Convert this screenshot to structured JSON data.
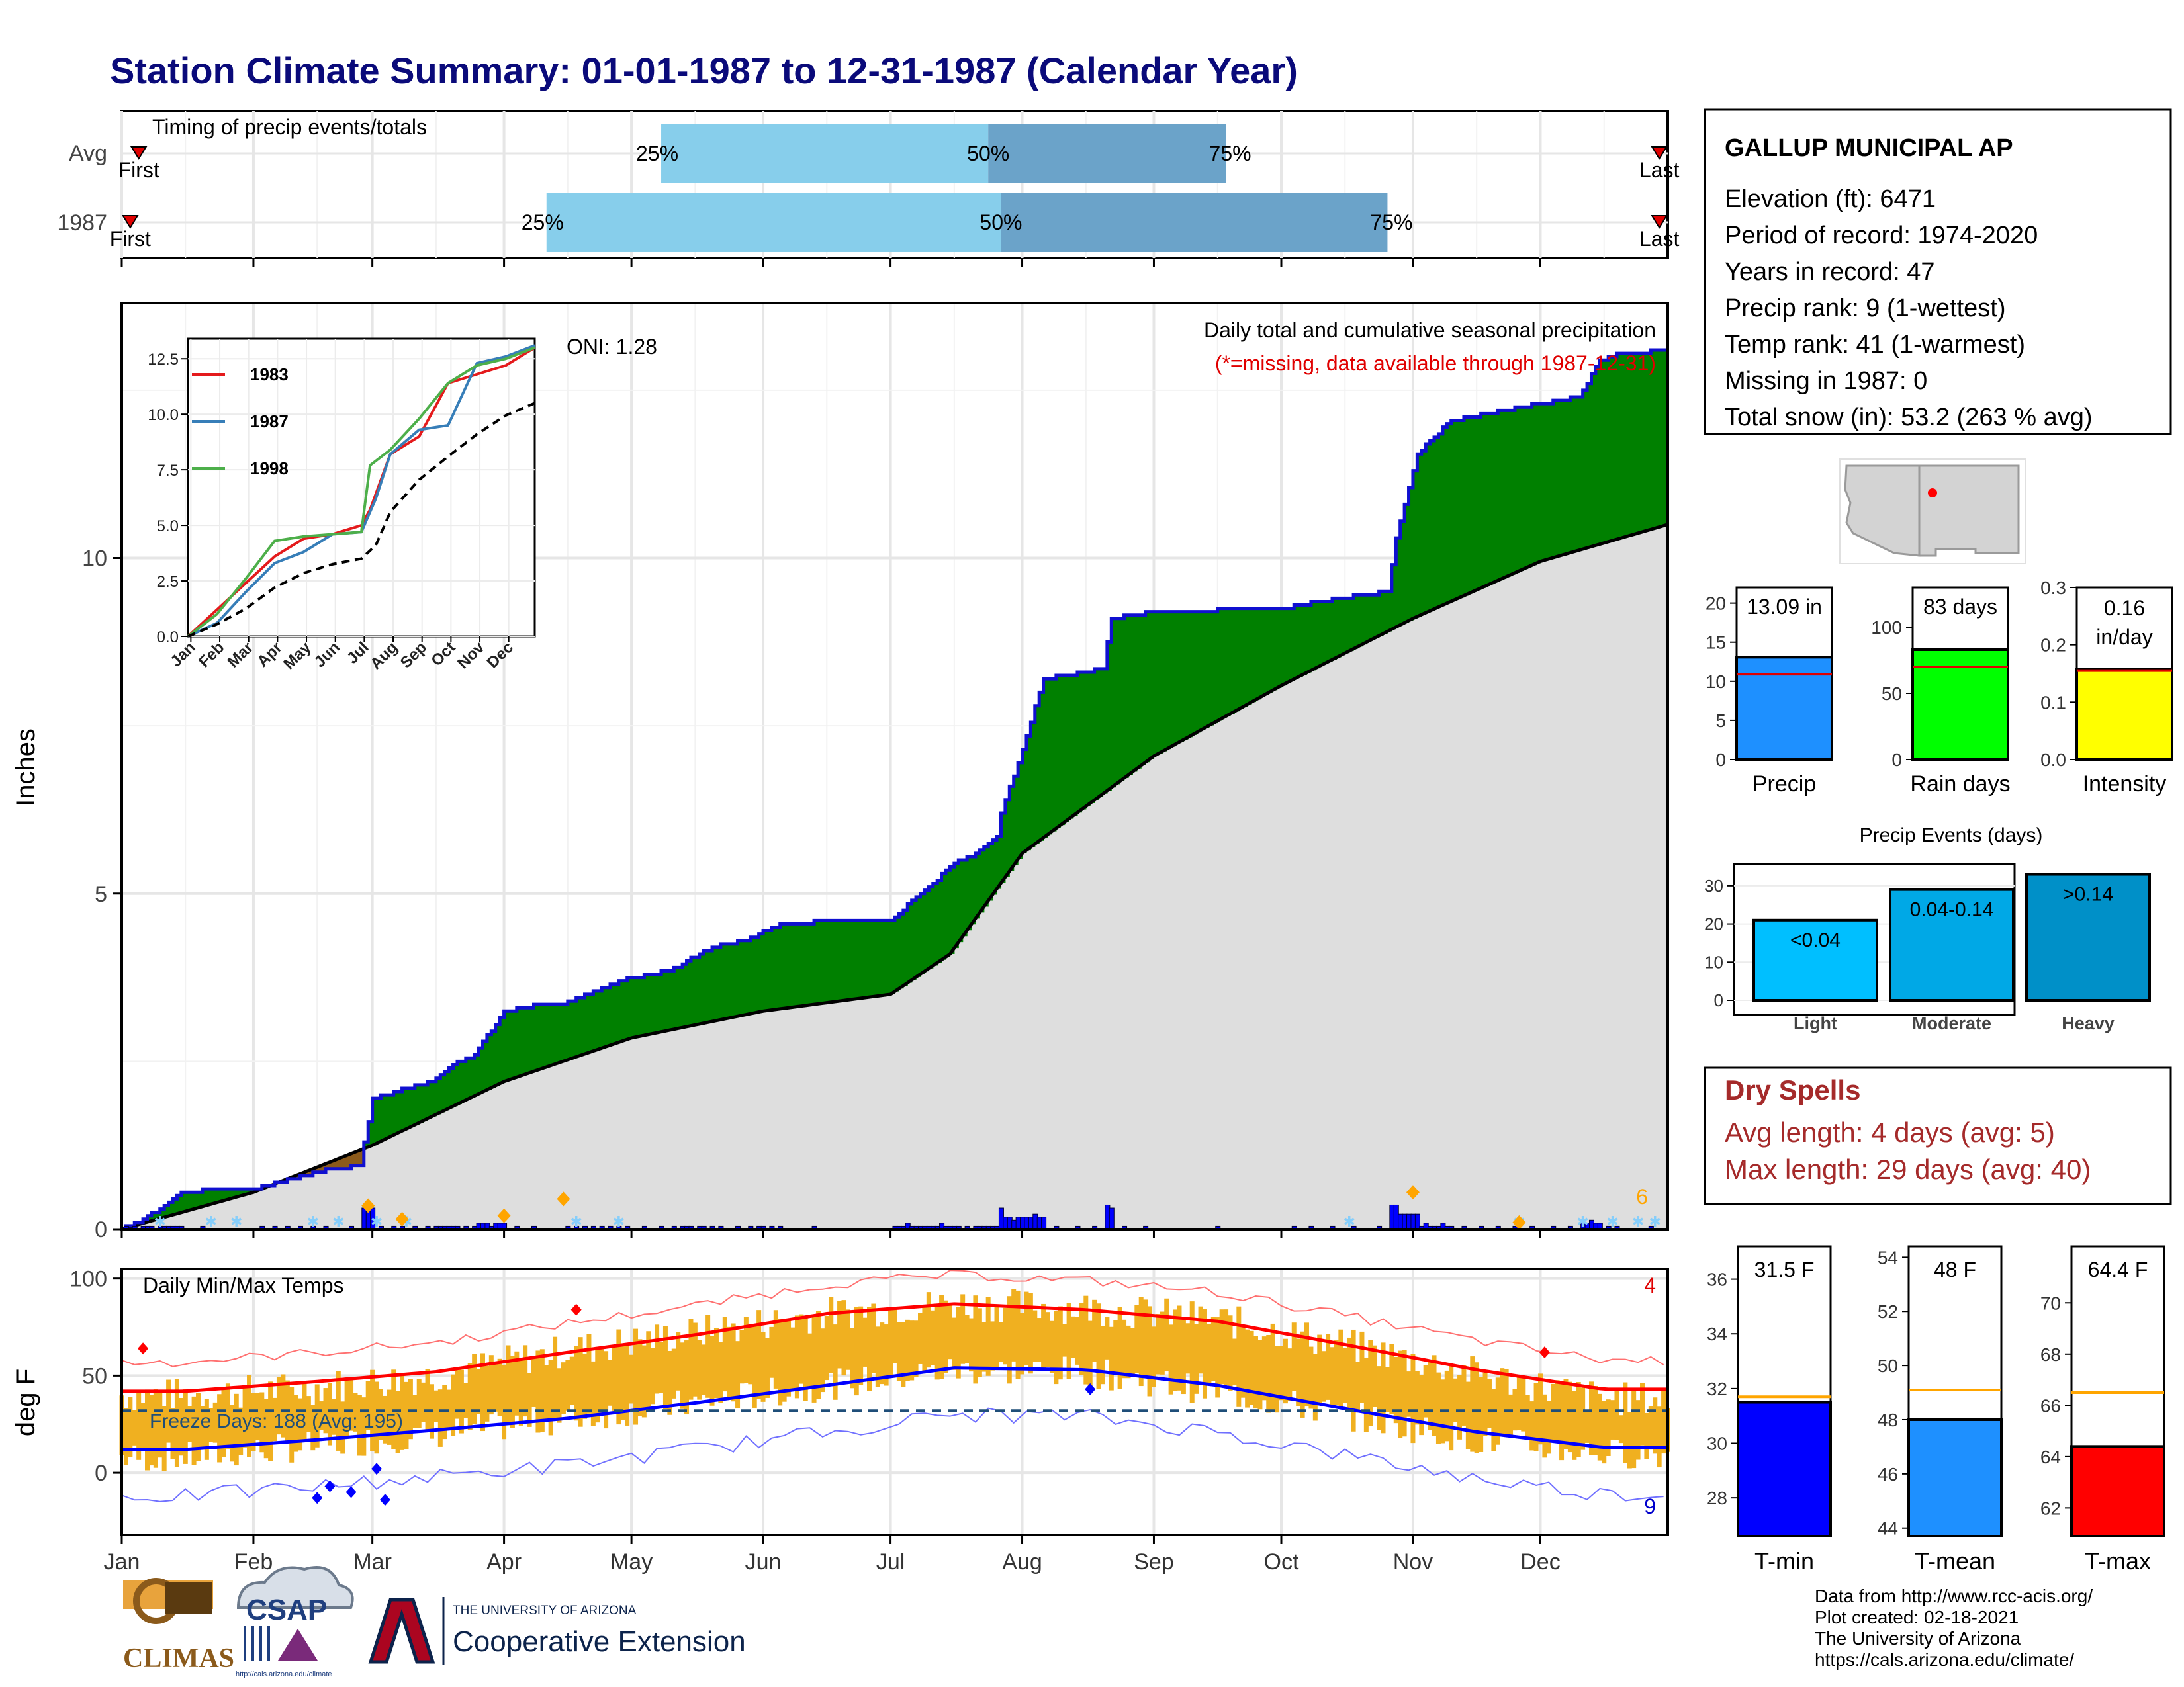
{
  "title": "Station Climate Summary: 01-01-1987 to 12-31-1987 (Calendar Year)",
  "colors": {
    "title": "#0a0a7a",
    "green": "#008000",
    "brown": "#8b5a1b",
    "cum_line": "#1010d0",
    "climo_fill": "#dedede",
    "bar_blue": "#0000ff",
    "q_light": "#87ceeb",
    "q_dark": "#6ba3c9",
    "red_text": "#e00000",
    "dry_title": "#a52a2a",
    "temp_orange": "#f0b020"
  },
  "timing": {
    "title": "Timing of precip events/totals",
    "rows": [
      {
        "label": "Avg",
        "first_label": "First",
        "last_label": "Last",
        "first_doy": 5,
        "last_doy": 363,
        "p25": 128,
        "p50": 205,
        "p75": 261,
        "p25_label": "25%",
        "p50_label": "50%",
        "p75_label": "75%"
      },
      {
        "label": "1987",
        "first_label": "First",
        "last_label": "Last",
        "first_doy": 3,
        "last_doy": 363,
        "p25": 101,
        "p50": 208,
        "p75": 299,
        "p25_label": "25%",
        "p50_label": "50%",
        "p75_label": "75%"
      }
    ]
  },
  "precip_panel": {
    "ylabel": "Inches",
    "header": "Daily total and cumulative seasonal precipitation",
    "missing_note": "(*=missing, data available through 1987-12-31)",
    "oni": "ONI: 1.28",
    "count_label": "6",
    "y_ticks": [
      "0",
      "5",
      "10"
    ]
  },
  "inset": {
    "y_ticks": [
      "0.0",
      "2.5",
      "5.0",
      "7.5",
      "10.0",
      "12.5"
    ],
    "x_ticks": [
      "Jan",
      "Feb",
      "Mar",
      "Apr",
      "May",
      "Jun",
      "Jul",
      "Aug",
      "Sep",
      "Oct",
      "Nov",
      "Dec"
    ],
    "legend": [
      {
        "name": "1983",
        "color": "#e41a1c"
      },
      {
        "name": "1987",
        "color": "#377eb8"
      },
      {
        "name": "1998",
        "color": "#4daf4a"
      }
    ]
  },
  "temp_panel": {
    "title": "Daily Min/Max Temps",
    "ylabel": "deg F",
    "freeze_label": "Freeze Days: 188 (Avg: 195)",
    "count_top": "4",
    "count_bottom": "9",
    "y_ticks": [
      "0",
      "50",
      "100"
    ],
    "months": [
      "Jan",
      "Feb",
      "Mar",
      "Apr",
      "May",
      "Jun",
      "Jul",
      "Aug",
      "Sep",
      "Oct",
      "Nov",
      "Dec"
    ]
  },
  "station": {
    "name": "GALLUP MUNICIPAL AP",
    "lines": [
      "Elevation (ft): 6471",
      "Period of record: 1974-2020",
      "Years in record: 47",
      "Precip rank: 9 (1-wettest)",
      "Temp rank: 41 (1-warmest)",
      "Missing in 1987: 0",
      "Total snow (in): 53.2 (263 % avg)"
    ]
  },
  "mini_bars": [
    {
      "label": "Precip",
      "value_label": "13.09 in",
      "value": 13.09,
      "avg": 10.9,
      "ymax": 22,
      "ticks": [
        "0",
        "5",
        "10",
        "15",
        "20"
      ],
      "tick_vals": [
        0,
        5,
        10,
        15,
        20
      ],
      "color": "#1e90ff"
    },
    {
      "label": "Rain days",
      "value_label": "83 days",
      "value": 83,
      "avg": 70,
      "ymax": 130,
      "ticks": [
        "0",
        "50",
        "100"
      ],
      "tick_vals": [
        0,
        50,
        100
      ],
      "color": "#00ff00"
    },
    {
      "label": "Intensity",
      "value_label": "0.16 in/day",
      "value": 0.158,
      "avg": 0.155,
      "ymax": 0.3,
      "ticks": [
        "0.0",
        "0.1",
        "0.2",
        "0.3"
      ],
      "tick_vals": [
        0,
        0.1,
        0.2,
        0.3
      ],
      "color": "#ffff00"
    }
  ],
  "events": {
    "title": "Precip Events (days)",
    "ticks": [
      "0",
      "10",
      "20",
      "30"
    ],
    "tick_vals": [
      0,
      10,
      20,
      30
    ],
    "bars": [
      {
        "category": "Light",
        "label": "<0.04",
        "value": 21,
        "color": "#00bfff"
      },
      {
        "category": "Moderate",
        "label": "0.04-0.14",
        "value": 29,
        "color": "#00a8e6"
      },
      {
        "category": "Heavy",
        "label": ">0.14",
        "value": 33,
        "color": "#0090c8"
      }
    ]
  },
  "dry_spells": {
    "title": "Dry Spells",
    "line1": "Avg length: 4 days (avg: 5)",
    "line2": "Max length: 29 days (avg: 40)"
  },
  "temp_bars": [
    {
      "label": "T-min",
      "value_label": "31.5 F",
      "value": 31.5,
      "avg": 31.7,
      "ymin": 26.6,
      "ymax": 37.2,
      "ticks": [
        "28",
        "30",
        "32",
        "34",
        "36"
      ],
      "tick_vals": [
        28,
        30,
        32,
        34,
        36
      ],
      "color": "#0000ff"
    },
    {
      "label": "T-mean",
      "value_label": "48 F",
      "value": 48.0,
      "avg": 49.1,
      "ymin": 43.7,
      "ymax": 54.4,
      "ticks": [
        "44",
        "46",
        "48",
        "50",
        "52",
        "54"
      ],
      "tick_vals": [
        44,
        46,
        48,
        50,
        52,
        54
      ],
      "color": "#1e90ff"
    },
    {
      "label": "T-max",
      "value_label": "64.4 F",
      "value": 64.4,
      "avg": 66.5,
      "ymin": 60.9,
      "ymax": 72.2,
      "ticks": [
        "62",
        "64",
        "66",
        "68",
        "70"
      ],
      "tick_vals": [
        62,
        64,
        66,
        68,
        70
      ],
      "color": "#ff0000"
    }
  ],
  "footer": {
    "lines": [
      "Data from http://www.rcc-acis.org/",
      "Plot created: 02-18-2021",
      "The University of Arizona",
      "https://cals.arizona.edu/climate/"
    ]
  },
  "logos": {
    "climas": "CLIMAS",
    "csap": "CSAP",
    "csap_url": "http://cals.arizona.edu/climate",
    "ua_small": "THE UNIVERSITY OF ARIZONA",
    "ua_big": "Cooperative Extension"
  },
  "chart_data": [
    {
      "type": "area",
      "title": "Daily total and cumulative seasonal precipitation",
      "ylabel": "Inches",
      "ylim": [
        0,
        13.8
      ],
      "cumulative_1987": {
        "x": [
          "01-01",
          "01-05",
          "01-11",
          "01-15",
          "01-21",
          "02-01",
          "02-18",
          "02-26",
          "03-01",
          "03-15",
          "03-20",
          "03-25",
          "04-01",
          "04-10",
          "04-15",
          "05-01",
          "05-10",
          "05-20",
          "05-28",
          "06-05",
          "06-20",
          "07-01",
          "07-16",
          "07-21",
          "07-26",
          "07-27",
          "08-01",
          "08-06",
          "08-20",
          "08-22",
          "09-01",
          "10-01",
          "10-15",
          "10-26",
          "10-28",
          "11-02",
          "11-10",
          "12-01",
          "12-10",
          "12-15",
          "12-20",
          "12-31"
        ],
        "y": [
          0.0,
          0.1,
          0.35,
          0.55,
          0.58,
          0.6,
          0.88,
          0.95,
          1.95,
          2.2,
          2.45,
          2.6,
          3.25,
          3.35,
          3.35,
          3.75,
          3.85,
          4.2,
          4.3,
          4.55,
          4.6,
          4.6,
          5.45,
          5.6,
          5.85,
          6.2,
          7.15,
          8.2,
          8.35,
          9.1,
          9.2,
          9.25,
          9.4,
          9.5,
          10.3,
          11.55,
          12.05,
          12.3,
          12.4,
          12.95,
          13.05,
          13.09
        ]
      },
      "climatology": {
        "x": [
          "01-01",
          "02-01",
          "03-01",
          "04-01",
          "05-01",
          "06-01",
          "07-01",
          "07-15",
          "08-01",
          "09-01",
          "10-01",
          "11-01",
          "12-01",
          "12-31"
        ],
        "y": [
          0.0,
          0.55,
          1.25,
          2.2,
          2.85,
          3.25,
          3.5,
          4.1,
          5.6,
          7.05,
          8.1,
          9.1,
          9.95,
          10.5
        ]
      },
      "snow_event_markers": 6
    },
    {
      "type": "line",
      "title": "",
      "xlabel": "",
      "ylabel": "",
      "ylim": [
        0,
        13
      ],
      "x": [
        "Jan",
        "Feb",
        "Mar",
        "Apr",
        "May",
        "Jun",
        "Jul",
        "Aug",
        "Sep",
        "Oct",
        "Nov",
        "Dec"
      ],
      "series": [
        {
          "name": "1983",
          "x": [
            0,
            1,
            2,
            3,
            4,
            5,
            6,
            6.3,
            7,
            8,
            9,
            10,
            11,
            12
          ],
          "values": [
            0,
            1.2,
            2.4,
            3.6,
            4.4,
            4.6,
            5.0,
            5.7,
            8.2,
            9.0,
            11.4,
            11.8,
            12.2,
            13.0
          ]
        },
        {
          "name": "1987",
          "x": [
            0,
            1,
            2,
            3,
            4,
            5,
            6,
            6.5,
            7,
            8,
            9,
            10,
            11,
            12
          ],
          "values": [
            0,
            0.6,
            2.0,
            3.3,
            3.8,
            4.6,
            4.7,
            6.2,
            8.2,
            9.3,
            9.5,
            12.3,
            12.6,
            13.1
          ]
        },
        {
          "name": "1998",
          "x": [
            0,
            1,
            2,
            3,
            4,
            5,
            6,
            6.3,
            7,
            8,
            9,
            10,
            11,
            12
          ],
          "values": [
            0,
            1.0,
            2.6,
            4.3,
            4.5,
            4.6,
            4.7,
            7.7,
            8.4,
            9.8,
            11.4,
            12.2,
            12.5,
            13.0
          ]
        },
        {
          "name": "",
          "style": "dashed",
          "x": [
            0,
            1,
            2,
            3,
            4,
            5,
            6,
            6.5,
            7,
            8,
            9,
            10,
            11,
            12
          ],
          "values": [
            0,
            0.55,
            1.25,
            2.2,
            2.85,
            3.25,
            3.5,
            4.1,
            5.6,
            7.05,
            8.1,
            9.1,
            9.95,
            10.5
          ]
        }
      ]
    },
    {
      "type": "bar",
      "title": "Daily Min/Max Temps",
      "ylabel": "deg F",
      "ylim": [
        -32,
        105
      ],
      "categories": [
        "Jan",
        "Feb",
        "Mar",
        "Apr",
        "May",
        "Jun",
        "Jul",
        "Aug",
        "Sep",
        "Oct",
        "Nov",
        "Dec"
      ],
      "monthly_tmax": [
        40,
        44,
        50,
        63,
        72,
        82,
        87,
        85,
        79,
        66,
        51,
        38
      ],
      "monthly_tmin": [
        8,
        14,
        20,
        28,
        36,
        45,
        53,
        52,
        42,
        30,
        17,
        10
      ],
      "normal_max": [
        42,
        47,
        52,
        62,
        71,
        82,
        87,
        84,
        78,
        66,
        53,
        43
      ],
      "normal_min": [
        12,
        17,
        22,
        28,
        36,
        45,
        54,
        53,
        45,
        33,
        21,
        13
      ],
      "freeze_line": 32
    },
    {
      "type": "bar",
      "title": "Precip Events (days)",
      "categories": [
        "Light",
        "Moderate",
        "Heavy"
      ],
      "values": [
        21,
        29,
        33
      ],
      "labels": [
        "<0.04",
        "0.04-0.14",
        ">0.14"
      ]
    },
    {
      "type": "bar",
      "categories": [
        "Precip",
        "Rain days",
        "Intensity"
      ],
      "values": [
        13.09,
        83,
        0.16
      ]
    },
    {
      "type": "bar",
      "categories": [
        "T-min",
        "T-mean",
        "T-max"
      ],
      "values": [
        31.5,
        48,
        64.4
      ]
    }
  ]
}
